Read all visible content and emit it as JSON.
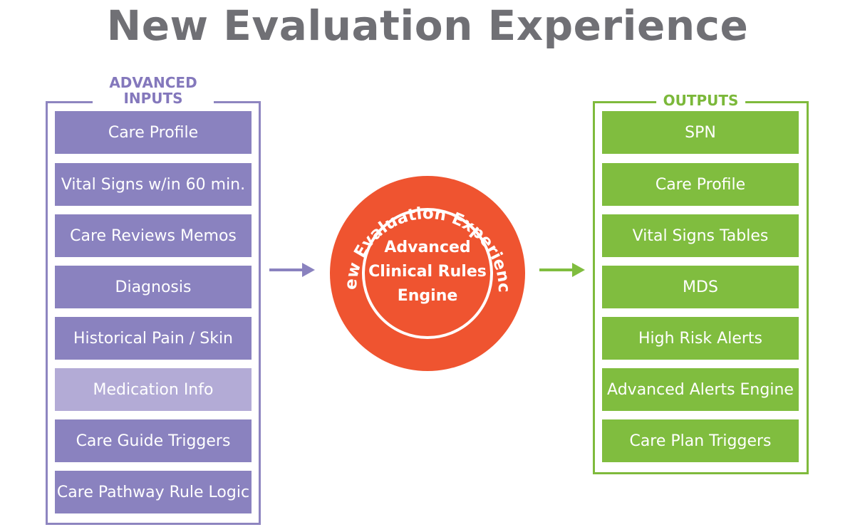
{
  "title": "New Evaluation Experience",
  "colors": {
    "input_accent": "#8a82bf",
    "input_light": "#b3abd6",
    "output_accent": "#80bd3f",
    "engine": "#ef5430",
    "title": "#707075"
  },
  "inputs": {
    "label": "ADVANCED\nINPUTS",
    "items": [
      {
        "label": "Care Profile",
        "highlight": false
      },
      {
        "label": "Vital Signs w/in 60 min.",
        "highlight": false
      },
      {
        "label": "Care Reviews Memos",
        "highlight": false
      },
      {
        "label": "Diagnosis",
        "highlight": false
      },
      {
        "label": "Historical Pain / Skin",
        "highlight": false
      },
      {
        "label": "Medication Info",
        "highlight": true
      },
      {
        "label": "Care Guide Triggers",
        "highlight": false
      },
      {
        "label": "Care Pathway Rule Logic",
        "highlight": false
      }
    ]
  },
  "engine": {
    "ring_text": "New Evaluation Experience",
    "line1": "Advanced",
    "line2": "Clinical Rules",
    "line3": "Engine"
  },
  "outputs": {
    "label": "OUTPUTS",
    "items": [
      {
        "label": "SPN"
      },
      {
        "label": "Care Profile"
      },
      {
        "label": "Vital Signs Tables"
      },
      {
        "label": "MDS"
      },
      {
        "label": "High Risk Alerts"
      },
      {
        "label": "Advanced Alerts Engine"
      },
      {
        "label": "Care Plan Triggers"
      }
    ]
  }
}
